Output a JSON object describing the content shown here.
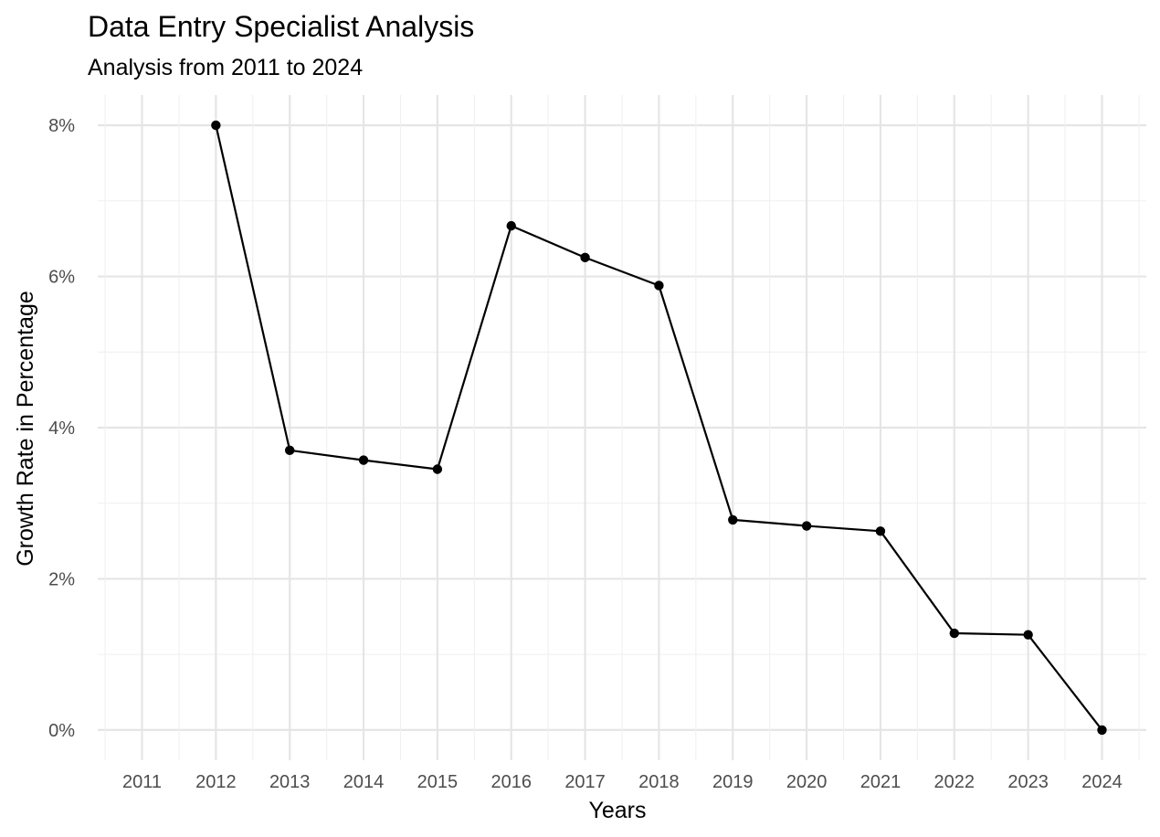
{
  "chart_data": {
    "type": "line",
    "title": "Data Entry Specialist Analysis",
    "subtitle": "Analysis from 2011 to 2024",
    "xlabel": "Years",
    "ylabel": "Growth Rate in Percentage",
    "x": [
      2012,
      2013,
      2014,
      2015,
      2016,
      2017,
      2018,
      2019,
      2020,
      2021,
      2022,
      2023,
      2024
    ],
    "values": [
      8.0,
      3.7,
      3.57,
      3.45,
      6.67,
      6.25,
      5.88,
      2.78,
      2.7,
      2.63,
      1.28,
      1.26,
      0.0
    ],
    "x_ticks": [
      "2011",
      "2012",
      "2013",
      "2014",
      "2015",
      "2016",
      "2017",
      "2018",
      "2019",
      "2020",
      "2021",
      "2022",
      "2023",
      "2024"
    ],
    "y_ticks": [
      "0%",
      "2%",
      "4%",
      "6%",
      "8%"
    ],
    "xlim": [
      2010.4,
      2024.6
    ],
    "ylim": [
      -0.4,
      8.4
    ],
    "grid": true,
    "line_color": "#000000"
  }
}
